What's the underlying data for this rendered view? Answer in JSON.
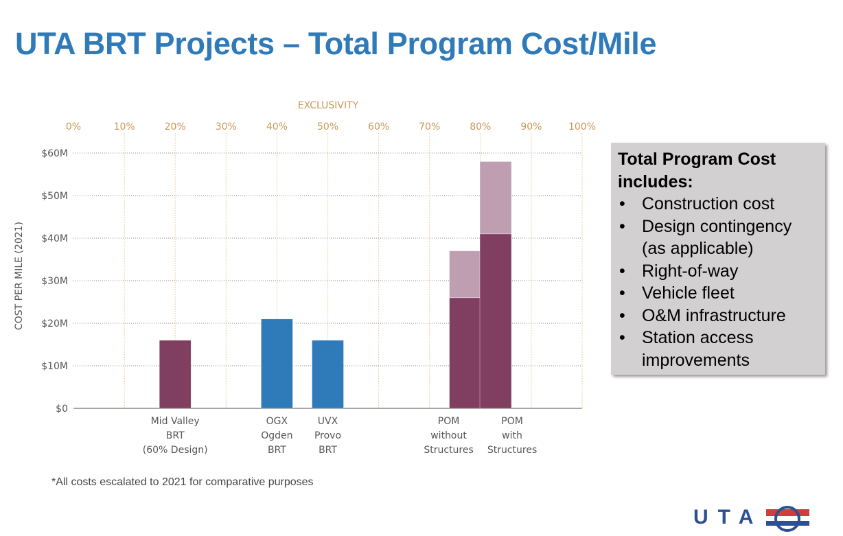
{
  "title": "UTA BRT Projects – Total Program Cost/Mile",
  "chart_data": {
    "type": "bar",
    "stacked": true,
    "title": "",
    "x_axis_top_label": "EXCLUSIVITY",
    "ylabel": "COST PER MILE (2021)",
    "xlim": [
      0,
      100
    ],
    "ylim": [
      0,
      60
    ],
    "x_ticks": [
      "0%",
      "10%",
      "20%",
      "30%",
      "40%",
      "50%",
      "60%",
      "70%",
      "80%",
      "90%",
      "100%"
    ],
    "y_ticks": [
      "$0",
      "$10M",
      "$20M",
      "$30M",
      "$40M",
      "$50M",
      "$60M"
    ],
    "grid": true,
    "bars": [
      {
        "label": [
          "Mid Valley",
          "BRT",
          "(60% Design)"
        ],
        "exclusivity": 20,
        "base": 16,
        "total": 16,
        "color": "#803e60"
      },
      {
        "label": [
          "OGX",
          "Ogden",
          "BRT"
        ],
        "exclusivity": 40,
        "base": 21,
        "total": 21,
        "color": "#2f7ab9"
      },
      {
        "label": [
          "UVX",
          "Provo",
          "BRT"
        ],
        "exclusivity": 50,
        "base": 16,
        "total": 16,
        "color": "#2f7ab9"
      },
      {
        "label": [
          "POM",
          "without",
          "Structures"
        ],
        "exclusivity": 77,
        "base": 26,
        "total": 37,
        "color": "#803e60",
        "upper_color": "#c09eb2"
      },
      {
        "label": [
          "POM",
          "with",
          "Structures"
        ],
        "exclusivity": 83,
        "base": 41,
        "total": 58,
        "color": "#803e60",
        "upper_color": "#c09eb2"
      }
    ],
    "colors": {
      "axis_top": "#c9975a",
      "grid_vertical": "#e8cba6",
      "grid_horizontal": "#888888",
      "tick_text": "#555555"
    }
  },
  "sidebox": {
    "heading": "Total Program Cost includes:",
    "items": [
      "Construction cost",
      "Design contingency (as applicable)",
      "Right-of-way",
      "Vehicle fleet",
      "O&M infrastructure",
      "Station access improvements"
    ]
  },
  "footnote": "*All costs escalated to 2021 for comparative purposes",
  "logo": {
    "text": "UTA",
    "colors": {
      "blue": "#2d4f93",
      "red": "#d13c3c"
    }
  }
}
